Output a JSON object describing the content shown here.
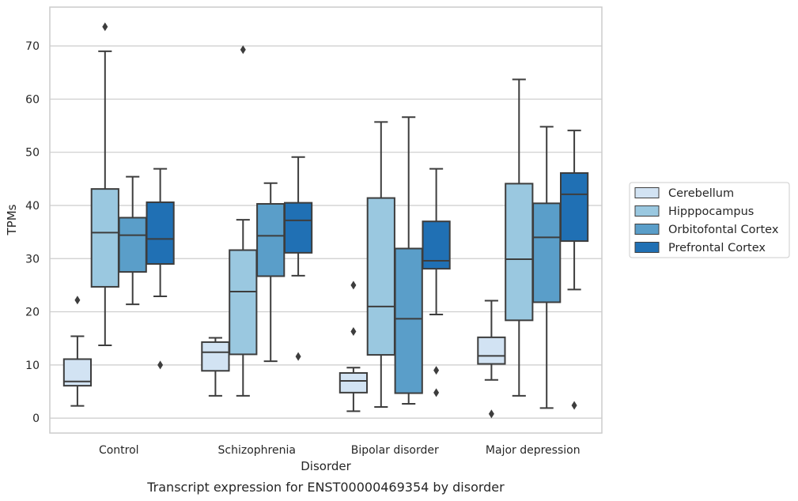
{
  "chart_data": {
    "type": "box",
    "xlabel": "Disorder",
    "ylabel": "TPMs",
    "caption": "Transcript expression for ENST00000469354 by disorder",
    "ylim": [
      -2.8,
      77.3
    ],
    "yticks": [
      0,
      10,
      20,
      30,
      40,
      50,
      60,
      70
    ],
    "grid": "horizontal",
    "legend_position": "right",
    "categories": [
      "Control",
      "Schizophrenia",
      "Bipolar disorder",
      "Major depression"
    ],
    "series": [
      {
        "name": "Cerebellum",
        "color": "#d2e3f3",
        "boxes": [
          {
            "whislo": 2.3,
            "q1": 6.1,
            "med": 6.9,
            "q3": 11.1,
            "whishi": 15.4,
            "fliers": [
              22.2
            ]
          },
          {
            "whislo": 4.2,
            "q1": 8.9,
            "med": 12.4,
            "q3": 14.3,
            "whishi": 15.1,
            "fliers": []
          },
          {
            "whislo": 1.3,
            "q1": 4.8,
            "med": 7.0,
            "q3": 8.5,
            "whishi": 9.5,
            "fliers": [
              16.3,
              25.0
            ]
          },
          {
            "whislo": 7.2,
            "q1": 10.2,
            "med": 11.7,
            "q3": 15.2,
            "whishi": 22.1,
            "fliers": [
              0.8
            ]
          }
        ]
      },
      {
        "name": "Hipppocampus",
        "color": "#9ac8e0",
        "boxes": [
          {
            "whislo": 13.7,
            "q1": 24.7,
            "med": 34.9,
            "q3": 43.1,
            "whishi": 69.0,
            "fliers": [
              73.6
            ]
          },
          {
            "whislo": 4.2,
            "q1": 12.0,
            "med": 23.8,
            "q3": 31.6,
            "whishi": 37.3,
            "fliers": [
              69.3
            ]
          },
          {
            "whislo": 2.1,
            "q1": 11.9,
            "med": 21.0,
            "q3": 41.4,
            "whishi": 55.7,
            "fliers": []
          },
          {
            "whislo": 4.2,
            "q1": 18.4,
            "med": 29.9,
            "q3": 44.1,
            "whishi": 63.7,
            "fliers": []
          }
        ]
      },
      {
        "name": "Orbitofontal Cortex",
        "color": "#5a9ec9",
        "boxes": [
          {
            "whislo": 21.4,
            "q1": 27.5,
            "med": 34.4,
            "q3": 37.7,
            "whishi": 45.4,
            "fliers": []
          },
          {
            "whislo": 10.7,
            "q1": 26.7,
            "med": 34.3,
            "q3": 40.3,
            "whishi": 44.2,
            "fliers": []
          },
          {
            "whislo": 2.7,
            "q1": 4.7,
            "med": 18.7,
            "q3": 31.9,
            "whishi": 56.6,
            "fliers": []
          },
          {
            "whislo": 1.9,
            "q1": 21.8,
            "med": 34.0,
            "q3": 40.4,
            "whishi": 54.8,
            "fliers": []
          }
        ]
      },
      {
        "name": "Prefrontal Cortex",
        "color": "#2070b4",
        "boxes": [
          {
            "whislo": 22.9,
            "q1": 29.0,
            "med": 33.7,
            "q3": 40.6,
            "whishi": 46.9,
            "fliers": [
              10.0
            ]
          },
          {
            "whislo": 26.8,
            "q1": 31.1,
            "med": 37.2,
            "q3": 40.5,
            "whishi": 49.1,
            "fliers": [
              11.6
            ]
          },
          {
            "whislo": 19.5,
            "q1": 28.1,
            "med": 29.6,
            "q3": 37.0,
            "whishi": 46.9,
            "fliers": [
              4.8,
              9.0
            ]
          },
          {
            "whislo": 24.2,
            "q1": 33.3,
            "med": 42.1,
            "q3": 46.1,
            "whishi": 54.1,
            "fliers": [
              2.4
            ]
          }
        ]
      }
    ]
  }
}
